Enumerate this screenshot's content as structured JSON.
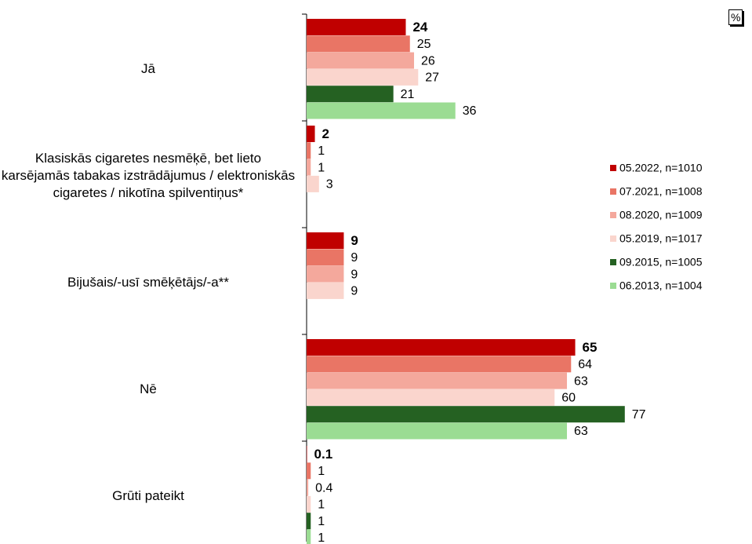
{
  "chart_data": {
    "type": "bar",
    "orientation": "horizontal",
    "unit_label": "%",
    "categories": [
      "Jā",
      "Klasiskās cigaretes nesmēķē, bet lieto karsējamās tabakas izstrādājumus / elektroniskās cigaretes / nikotīna spilventiņus*",
      "Bijušais/-usī smēķētājs/-a**",
      "Nē",
      "Grūti pateikt"
    ],
    "series": [
      {
        "name": "05.2022, n=1010",
        "color": "#c00000",
        "values": [
          24,
          2,
          9,
          65,
          0.1
        ]
      },
      {
        "name": "07.2021, n=1008",
        "color": "#e97565",
        "values": [
          25,
          1,
          9,
          64,
          1
        ]
      },
      {
        "name": "08.2020, n=1009",
        "color": "#f4a89c",
        "values": [
          26,
          1,
          9,
          63,
          0.4
        ]
      },
      {
        "name": "05.2019, n=1017",
        "color": "#fad5cd",
        "values": [
          27,
          3,
          9,
          60,
          1
        ]
      },
      {
        "name": "09.2015, n=1005",
        "color": "#256122",
        "values": [
          21,
          null,
          null,
          77,
          1
        ]
      },
      {
        "name": "06.2013, n=1004",
        "color": "#9bdc93",
        "values": [
          36,
          null,
          null,
          63,
          1
        ]
      }
    ],
    "legend": "right"
  }
}
